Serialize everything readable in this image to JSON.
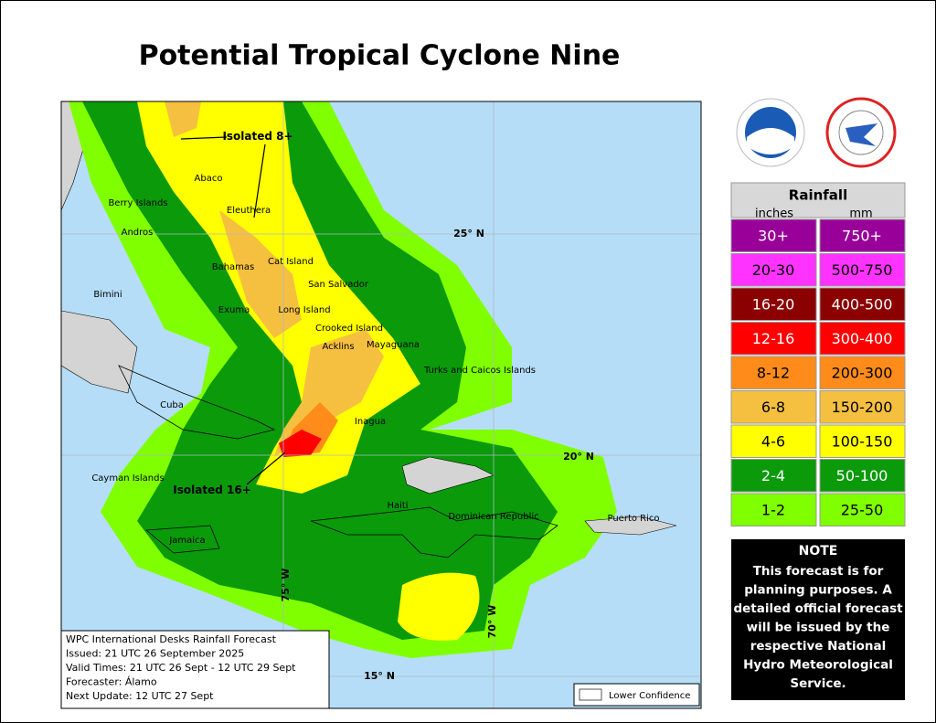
{
  "header": {
    "title": "Potential Tropical Cyclone Nine"
  },
  "map": {
    "place_labels": [
      "Abaco",
      "Berry Islands",
      "Andros",
      "Eleuthera",
      "Bahamas",
      "Cat Island",
      "San Salvador",
      "Bimini",
      "Exuma",
      "Long Island",
      "Crooked Island",
      "Mayaguana",
      "Acklins",
      "Turks and Caicos Islands",
      "Cuba",
      "Inagua",
      "Cayman Islands",
      "Haiti",
      "Dominican Republic",
      "Puerto Rico",
      "Jamaica"
    ],
    "annotations": [
      "Isolated 8+",
      "Isolated 16+"
    ],
    "grid_labels": [
      "25° N",
      "20° N",
      "15° N",
      "75° W",
      "70° W"
    ]
  },
  "legend": {
    "title": "Rainfall",
    "unit_headers": [
      "inches",
      "mm"
    ],
    "rows": [
      {
        "inches": "30+",
        "mm": "750+",
        "color": "#990099"
      },
      {
        "inches": "20-30",
        "mm": "500-750",
        "color": "#ff33ff"
      },
      {
        "inches": "16-20",
        "mm": "400-500",
        "color": "#8b0000"
      },
      {
        "inches": "12-16",
        "mm": "300-400",
        "color": "#ff0000"
      },
      {
        "inches": "8-12",
        "mm": "200-300",
        "color": "#ff8c1a"
      },
      {
        "inches": "6-8",
        "mm": "150-200",
        "color": "#f5c040"
      },
      {
        "inches": "4-6",
        "mm": "100-150",
        "color": "#ffff00"
      },
      {
        "inches": "2-4",
        "mm": "50-100",
        "color": "#0a9a0a"
      },
      {
        "inches": "1-2",
        "mm": "25-50",
        "color": "#80ff00"
      }
    ]
  },
  "note": {
    "title": "NOTE",
    "lines": [
      "This forecast is for",
      "planning purposes. A",
      "detailed official forecast",
      "will be issued by the",
      "respective National",
      "Hydro Meteorological",
      "Service."
    ]
  },
  "info_box": {
    "lines": [
      "WPC International Desks Rainfall Forecast",
      "Issued: 21 UTC 26 September 2025",
      "Valid Times: 21 UTC 26 Sept - 12 UTC 29 Sept",
      "Forecaster: Álamo",
      "Next Update: 12 UTC 27 Sept"
    ]
  },
  "lower_confidence": "Lower Confidence"
}
